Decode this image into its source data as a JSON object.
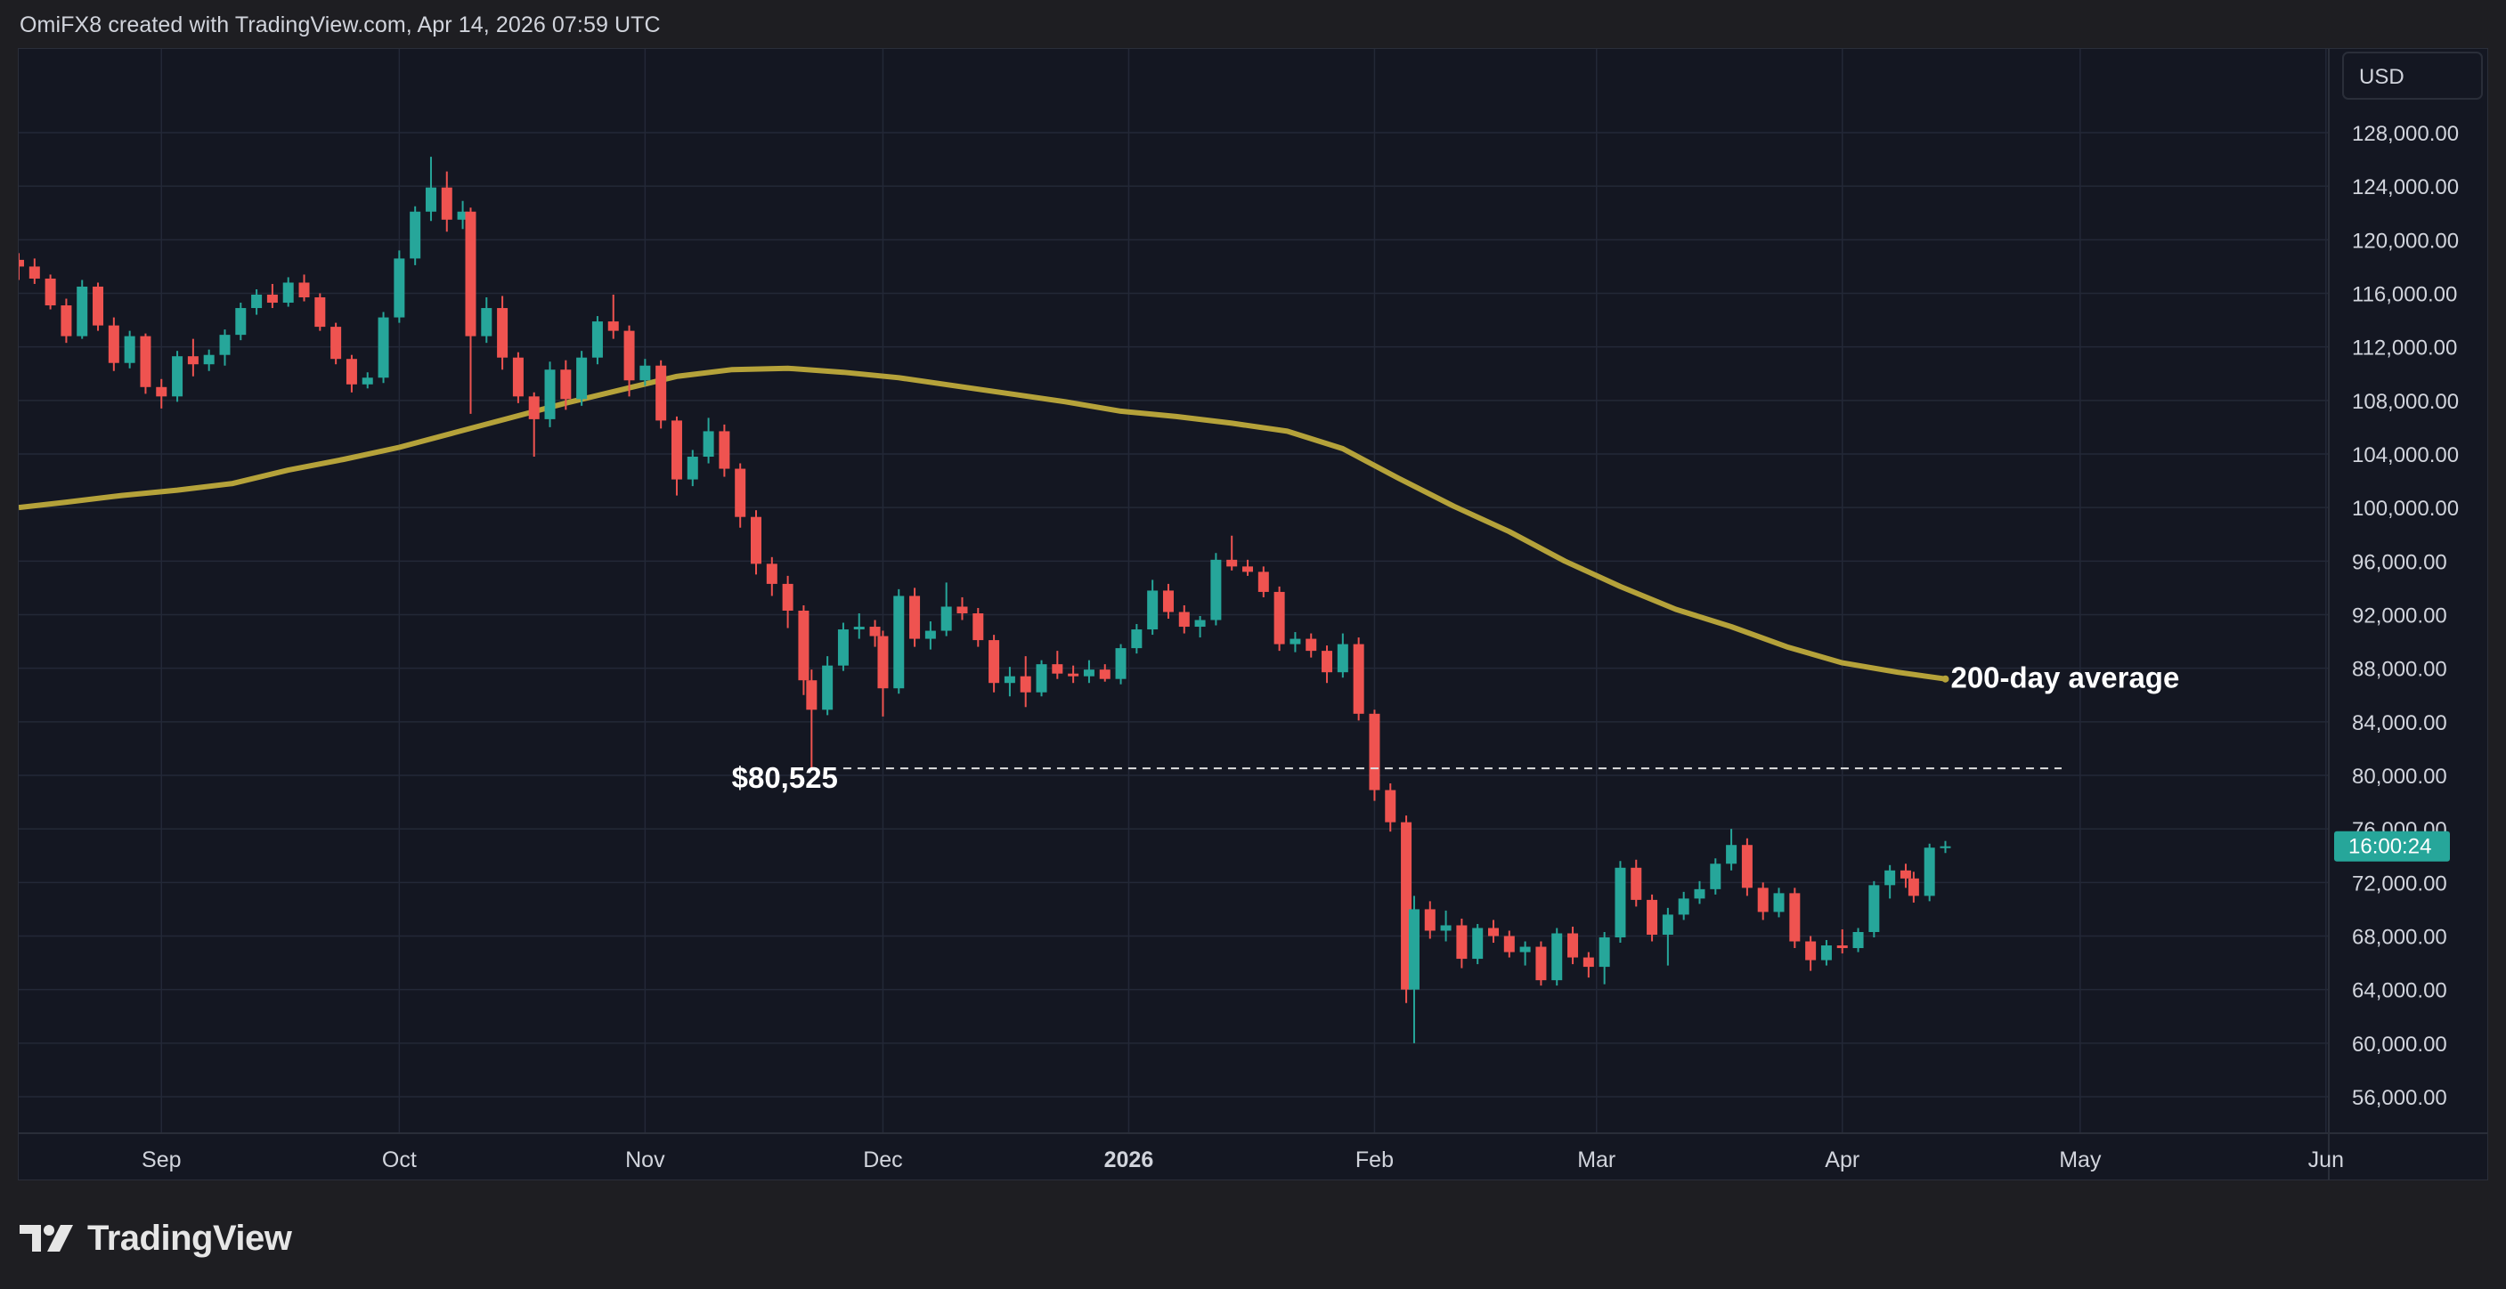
{
  "header": {
    "text": "OmiFX8 created with TradingView.com, Apr 14, 2026 07:59 UTC"
  },
  "footer": {
    "brand": "TradingView",
    "logo_icon": "tradingview-logo-icon"
  },
  "colors": {
    "background": "#141722",
    "grid": "#232837",
    "up": "#26a69a",
    "down": "#ef5350",
    "ma": "#b5a23a",
    "text": "#d1d4dc",
    "annotation": "#ffffff",
    "price_badge": "#26a69a"
  },
  "price_axis": {
    "currency": "USD",
    "ticks": [
      "128,000.00",
      "124,000.00",
      "120,000.00",
      "116,000.00",
      "112,000.00",
      "108,000.00",
      "104,000.00",
      "100,000.00",
      "96,000.00",
      "92,000.00",
      "88,000.00",
      "84,000.00",
      "80,000.00",
      "76,000.00",
      "72,000.00",
      "68,000.00",
      "64,000.00",
      "60,000.00",
      "56,000.00"
    ],
    "current_badge": "16:00:24"
  },
  "time_axis": {
    "labels": [
      "Sep",
      "Oct",
      "Nov",
      "Dec",
      "2026",
      "Feb",
      "Mar",
      "Apr",
      "May",
      "Jun"
    ]
  },
  "annotations": {
    "support_label": "$80,525",
    "ma_label": "200-day average"
  },
  "chart_data": {
    "type": "candlestick",
    "x_axis": "date",
    "y_axis": "price (USD)",
    "ylim": [
      54000,
      131000
    ],
    "grid": true,
    "support_level": 80525,
    "current_countdown": "16:00:24",
    "moving_average": {
      "name": "200-day average",
      "points": [
        [
          "2025-08-14",
          100000
        ],
        [
          "2025-08-20",
          100400
        ],
        [
          "2025-08-27",
          100900
        ],
        [
          "2025-09-03",
          101300
        ],
        [
          "2025-09-10",
          101800
        ],
        [
          "2025-09-17",
          102800
        ],
        [
          "2025-09-24",
          103600
        ],
        [
          "2025-10-01",
          104500
        ],
        [
          "2025-10-08",
          105600
        ],
        [
          "2025-10-15",
          106700
        ],
        [
          "2025-10-22",
          107800
        ],
        [
          "2025-10-29",
          108800
        ],
        [
          "2025-11-05",
          109800
        ],
        [
          "2025-11-12",
          110300
        ],
        [
          "2025-11-19",
          110400
        ],
        [
          "2025-11-26",
          110100
        ],
        [
          "2025-12-03",
          109700
        ],
        [
          "2025-12-10",
          109100
        ],
        [
          "2025-12-17",
          108500
        ],
        [
          "2025-12-24",
          107900
        ],
        [
          "2025-12-31",
          107200
        ],
        [
          "2026-01-07",
          106800
        ],
        [
          "2026-01-14",
          106300
        ],
        [
          "2026-01-21",
          105700
        ],
        [
          "2026-01-28",
          104400
        ],
        [
          "2026-02-04",
          102200
        ],
        [
          "2026-02-11",
          100100
        ],
        [
          "2026-02-18",
          98200
        ],
        [
          "2026-02-25",
          96000
        ],
        [
          "2026-03-04",
          94100
        ],
        [
          "2026-03-11",
          92400
        ],
        [
          "2026-03-18",
          91100
        ],
        [
          "2026-03-25",
          89600
        ],
        [
          "2026-04-01",
          88400
        ],
        [
          "2026-04-08",
          87700
        ],
        [
          "2026-04-14",
          87200
        ]
      ]
    },
    "candles": [
      [
        "2025-08-14",
        118500,
        119000,
        117000,
        118000
      ],
      [
        "2025-08-16",
        118000,
        118600,
        116700,
        117100
      ],
      [
        "2025-08-18",
        117100,
        117400,
        114800,
        115100
      ],
      [
        "2025-08-20",
        115100,
        115600,
        112300,
        112800
      ],
      [
        "2025-08-22",
        112800,
        117000,
        112600,
        116500
      ],
      [
        "2025-08-24",
        116500,
        116800,
        113200,
        113600
      ],
      [
        "2025-08-26",
        113600,
        114200,
        110200,
        110800
      ],
      [
        "2025-08-28",
        110800,
        113200,
        110400,
        112800
      ],
      [
        "2025-08-30",
        112800,
        113000,
        108500,
        109000
      ],
      [
        "2025-09-01",
        109000,
        109600,
        107400,
        108300
      ],
      [
        "2025-09-03",
        108300,
        111700,
        107900,
        111300
      ],
      [
        "2025-09-05",
        111300,
        112600,
        109800,
        110700
      ],
      [
        "2025-09-07",
        110700,
        111800,
        110200,
        111400
      ],
      [
        "2025-09-09",
        111400,
        113300,
        110600,
        112900
      ],
      [
        "2025-09-11",
        112900,
        115300,
        112500,
        114900
      ],
      [
        "2025-09-13",
        114900,
        116300,
        114400,
        115900
      ],
      [
        "2025-09-15",
        115900,
        116700,
        114900,
        115300
      ],
      [
        "2025-09-17",
        115300,
        117200,
        115000,
        116800
      ],
      [
        "2025-09-19",
        116800,
        117400,
        115400,
        115700
      ],
      [
        "2025-09-21",
        115700,
        116000,
        113200,
        113500
      ],
      [
        "2025-09-23",
        113500,
        113800,
        110700,
        111100
      ],
      [
        "2025-09-25",
        111100,
        111400,
        108600,
        109200
      ],
      [
        "2025-09-27",
        109200,
        110100,
        108900,
        109700
      ],
      [
        "2025-09-29",
        109700,
        114600,
        109300,
        114200
      ],
      [
        "2025-10-01",
        114200,
        119200,
        113800,
        118600
      ],
      [
        "2025-10-03",
        118600,
        122500,
        118100,
        122100
      ],
      [
        "2025-10-05",
        122100,
        126200,
        121400,
        123900
      ],
      [
        "2025-10-07",
        123900,
        125100,
        120600,
        121500
      ],
      [
        "2025-10-09",
        121500,
        122900,
        120800,
        122100
      ],
      [
        "2025-10-10",
        122100,
        122400,
        107000,
        112800
      ],
      [
        "2025-10-12",
        112800,
        115700,
        112300,
        114900
      ],
      [
        "2025-10-14",
        114900,
        115800,
        110300,
        111200
      ],
      [
        "2025-10-16",
        111200,
        111600,
        107800,
        108300
      ],
      [
        "2025-10-18",
        108300,
        108600,
        103800,
        106600
      ],
      [
        "2025-10-20",
        106600,
        110900,
        106000,
        110300
      ],
      [
        "2025-10-22",
        110300,
        111000,
        107300,
        108100
      ],
      [
        "2025-10-24",
        108100,
        111700,
        107600,
        111200
      ],
      [
        "2025-10-26",
        111200,
        114300,
        110700,
        113900
      ],
      [
        "2025-10-28",
        113900,
        115900,
        112600,
        113200
      ],
      [
        "2025-10-30",
        113200,
        113600,
        108300,
        109500
      ],
      [
        "2025-11-01",
        109500,
        111100,
        109100,
        110600
      ],
      [
        "2025-11-03",
        110600,
        111000,
        105900,
        106500
      ],
      [
        "2025-11-05",
        106500,
        106800,
        100900,
        102100
      ],
      [
        "2025-11-07",
        102100,
        104300,
        101600,
        103800
      ],
      [
        "2025-11-09",
        103800,
        106700,
        103300,
        105700
      ],
      [
        "2025-11-11",
        105700,
        106200,
        102300,
        102900
      ],
      [
        "2025-11-13",
        102900,
        103300,
        98500,
        99300
      ],
      [
        "2025-11-15",
        99300,
        99800,
        95000,
        95800
      ],
      [
        "2025-11-17",
        95800,
        96300,
        93400,
        94300
      ],
      [
        "2025-11-19",
        94300,
        94900,
        91000,
        92300
      ],
      [
        "2025-11-21",
        92300,
        92700,
        86000,
        87100
      ],
      [
        "2025-11-22",
        87100,
        87900,
        80525,
        84900
      ],
      [
        "2025-11-24",
        84900,
        88900,
        84500,
        88200
      ],
      [
        "2025-11-26",
        88200,
        91400,
        87800,
        90900
      ],
      [
        "2025-11-28",
        90900,
        92100,
        90200,
        91100
      ],
      [
        "2025-11-30",
        91100,
        91600,
        89600,
        90400
      ],
      [
        "2025-12-01",
        90400,
        90800,
        84400,
        86500
      ],
      [
        "2025-12-03",
        86500,
        93900,
        86100,
        93400
      ],
      [
        "2025-12-05",
        93400,
        94000,
        89600,
        90200
      ],
      [
        "2025-12-07",
        90200,
        91500,
        89400,
        90800
      ],
      [
        "2025-12-09",
        90800,
        94400,
        90400,
        92600
      ],
      [
        "2025-12-11",
        92600,
        93300,
        91600,
        92100
      ],
      [
        "2025-12-13",
        92100,
        92500,
        89600,
        90100
      ],
      [
        "2025-12-15",
        90100,
        90500,
        86200,
        86900
      ],
      [
        "2025-12-17",
        86900,
        88100,
        85900,
        87400
      ],
      [
        "2025-12-19",
        87400,
        88900,
        85100,
        86200
      ],
      [
        "2025-12-21",
        86200,
        88600,
        85900,
        88300
      ],
      [
        "2025-12-23",
        88300,
        89300,
        87200,
        87600
      ],
      [
        "2025-12-25",
        87600,
        88200,
        86900,
        87400
      ],
      [
        "2025-12-27",
        87400,
        88600,
        86900,
        87900
      ],
      [
        "2025-12-29",
        87900,
        88300,
        87000,
        87200
      ],
      [
        "2025-12-31",
        87200,
        89800,
        86800,
        89500
      ],
      [
        "2026-01-02",
        89500,
        91300,
        89100,
        90900
      ],
      [
        "2026-01-04",
        90900,
        94600,
        90500,
        93800
      ],
      [
        "2026-01-06",
        93800,
        94300,
        91700,
        92200
      ],
      [
        "2026-01-08",
        92200,
        92700,
        90600,
        91100
      ],
      [
        "2026-01-10",
        91100,
        91900,
        90300,
        91600
      ],
      [
        "2026-01-12",
        91600,
        96600,
        91200,
        96100
      ],
      [
        "2026-01-14",
        96100,
        97900,
        95300,
        95600
      ],
      [
        "2026-01-16",
        95600,
        96100,
        94900,
        95200
      ],
      [
        "2026-01-18",
        95200,
        95600,
        93300,
        93700
      ],
      [
        "2026-01-20",
        93700,
        94100,
        89300,
        89800
      ],
      [
        "2026-01-22",
        89800,
        90700,
        89200,
        90200
      ],
      [
        "2026-01-24",
        90200,
        90600,
        88800,
        89300
      ],
      [
        "2026-01-26",
        89300,
        89700,
        86900,
        87700
      ],
      [
        "2026-01-28",
        87700,
        90600,
        87300,
        89800
      ],
      [
        "2026-01-30",
        89800,
        90300,
        84100,
        84600
      ],
      [
        "2026-02-01",
        84600,
        84900,
        78100,
        78900
      ],
      [
        "2026-02-03",
        78900,
        79400,
        75800,
        76500
      ],
      [
        "2026-02-05",
        76500,
        77000,
        63000,
        64000
      ],
      [
        "2026-02-06",
        64000,
        71000,
        60000,
        70000
      ],
      [
        "2026-02-08",
        70000,
        70600,
        67800,
        68400
      ],
      [
        "2026-02-10",
        68400,
        69900,
        67600,
        68800
      ],
      [
        "2026-02-12",
        68800,
        69300,
        65600,
        66300
      ],
      [
        "2026-02-14",
        66300,
        68900,
        65900,
        68600
      ],
      [
        "2026-02-16",
        68600,
        69200,
        67500,
        68000
      ],
      [
        "2026-02-18",
        68000,
        68400,
        66400,
        66800
      ],
      [
        "2026-02-20",
        66800,
        67600,
        65800,
        67200
      ],
      [
        "2026-02-22",
        67200,
        67600,
        64300,
        64700
      ],
      [
        "2026-02-24",
        64700,
        68600,
        64300,
        68200
      ],
      [
        "2026-02-26",
        68200,
        68700,
        65900,
        66400
      ],
      [
        "2026-02-28",
        66400,
        66800,
        64900,
        65700
      ],
      [
        "2026-03-02",
        65700,
        68300,
        64400,
        67900
      ],
      [
        "2026-03-04",
        67900,
        73600,
        67500,
        73100
      ],
      [
        "2026-03-06",
        73100,
        73700,
        70200,
        70700
      ],
      [
        "2026-03-08",
        70700,
        71100,
        67600,
        68100
      ],
      [
        "2026-03-10",
        68100,
        70100,
        65800,
        69600
      ],
      [
        "2026-03-12",
        69600,
        71300,
        69200,
        70800
      ],
      [
        "2026-03-14",
        70800,
        72100,
        70400,
        71500
      ],
      [
        "2026-03-16",
        71500,
        73800,
        71100,
        73400
      ],
      [
        "2026-03-18",
        73400,
        76000,
        72900,
        74800
      ],
      [
        "2026-03-20",
        74800,
        75300,
        71000,
        71600
      ],
      [
        "2026-03-22",
        71600,
        72000,
        69200,
        69800
      ],
      [
        "2026-03-24",
        69800,
        71600,
        69400,
        71200
      ],
      [
        "2026-03-26",
        71200,
        71600,
        67100,
        67600
      ],
      [
        "2026-03-28",
        67600,
        68000,
        65400,
        66200
      ],
      [
        "2026-03-30",
        66200,
        67700,
        65800,
        67300
      ],
      [
        "2026-04-01",
        67300,
        68500,
        66700,
        67100
      ],
      [
        "2026-04-03",
        67100,
        68600,
        66800,
        68300
      ],
      [
        "2026-04-05",
        68300,
        72100,
        67900,
        71800
      ],
      [
        "2026-04-07",
        71800,
        73300,
        70800,
        72900
      ],
      [
        "2026-04-09",
        72900,
        73400,
        71600,
        72300
      ],
      [
        "2026-04-10",
        72300,
        72800,
        70500,
        71000
      ],
      [
        "2026-04-12",
        71000,
        74900,
        70600,
        74600
      ],
      [
        "2026-04-14",
        74600,
        75100,
        74200,
        74700
      ]
    ]
  }
}
